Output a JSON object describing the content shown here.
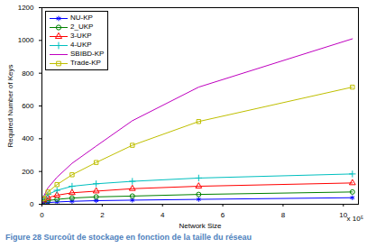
{
  "chart_data": {
    "type": "line",
    "x_label": "Network Size",
    "y_label": "Required Number of Keys",
    "annotation": "x 10⁵",
    "caption": "Figure 28 Surcoût de stockage en fonction de la taille du réseau",
    "x": [
      0.05,
      0.2,
      0.5,
      1.0,
      1.8,
      3.0,
      5.2,
      10.3
    ],
    "series": [
      {
        "name": "NU-KP",
        "color": "#0000ff",
        "marker": "asterisk",
        "values": [
          7,
          10,
          14,
          18,
          22,
          25,
          30,
          40
        ]
      },
      {
        "name": "2_UKP",
        "color": "#008000",
        "marker": "circle",
        "values": [
          15,
          22,
          30,
          38,
          45,
          50,
          60,
          75
        ]
      },
      {
        "name": "3-UKP",
        "color": "#ff0000",
        "marker": "triangle",
        "values": [
          25,
          40,
          55,
          70,
          80,
          95,
          110,
          130
        ]
      },
      {
        "name": "4-UKP",
        "color": "#00bfbf",
        "marker": "plus",
        "values": [
          35,
          60,
          85,
          110,
          125,
          140,
          160,
          185
        ]
      },
      {
        "name": "SBIBD-KP",
        "color": "#bf00bf",
        "marker": "none",
        "values": [
          45,
          100,
          165,
          250,
          355,
          510,
          715,
          1010
        ]
      },
      {
        "name": "Trade-KP",
        "color": "#bfbf00",
        "marker": "square",
        "values": [
          35,
          75,
          120,
          180,
          255,
          360,
          505,
          715
        ]
      }
    ],
    "xlim": [
      0,
      10.5
    ],
    "xticks": [
      0,
      2,
      4,
      6,
      8,
      10
    ],
    "ylim": [
      0,
      1200
    ],
    "yticks": [
      0,
      200,
      400,
      600,
      800,
      1000,
      1200
    ],
    "grid": false,
    "legend": "upper left"
  }
}
